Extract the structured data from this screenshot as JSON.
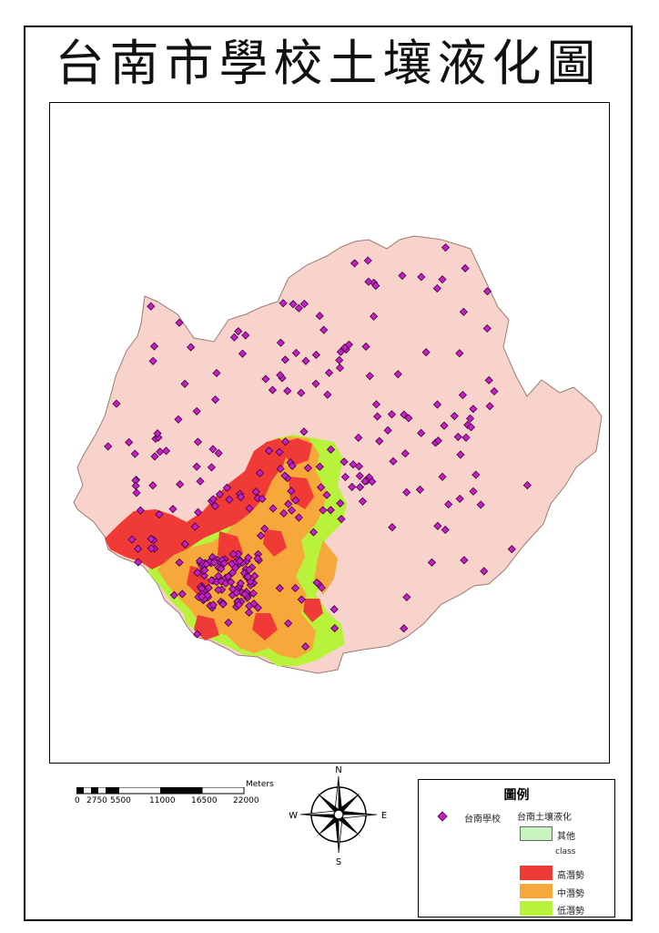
{
  "title": "台南市學校土壤液化圖",
  "map": {
    "school_layer": "台南學校",
    "colors": {
      "boundary_fill": "#f8d3cc",
      "high": "#ef3a35",
      "medium": "#f6a93a",
      "low": "#b8f23a",
      "school": "#c61fc6"
    }
  },
  "scalebar": {
    "unit": "Meters",
    "ticks": [
      "0",
      "2750",
      "5500",
      "11000",
      "16500",
      "22000"
    ]
  },
  "compass": {
    "n": "N",
    "s": "S",
    "e": "E",
    "w": "W"
  },
  "legend": {
    "title": "圖例",
    "school_label": "台南學校",
    "layer_label": "台南土壤液化",
    "other_label": "其他",
    "class_label": "class",
    "high_label": "高潛勢",
    "medium_label": "中潛勢",
    "low_label": "低潛勢",
    "colors": {
      "other": "#c8f5c0",
      "high": "#ef3a35",
      "medium": "#f6a93a",
      "low": "#b8f23a"
    }
  }
}
